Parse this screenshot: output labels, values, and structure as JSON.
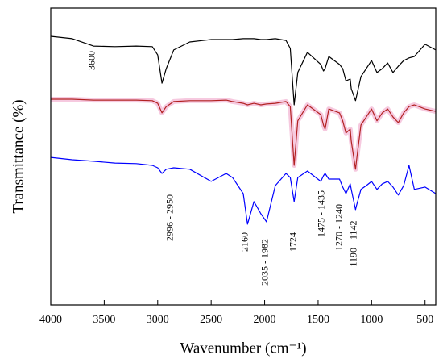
{
  "chart_data": {
    "type": "line",
    "x_label": "Wavenumber (cm⁻¹)",
    "y_label": "Transmittance (%)",
    "xlim": [
      4000,
      400
    ],
    "ylim": [
      0,
      100
    ],
    "xticks": [
      4000,
      3500,
      3000,
      2500,
      2000,
      1500,
      1000,
      500
    ],
    "x": [
      4000,
      3800,
      3600,
      3400,
      3200,
      3050,
      3000,
      2960,
      2920,
      2850,
      2700,
      2500,
      2360,
      2300,
      2200,
      2160,
      2100,
      2035,
      1982,
      1900,
      1800,
      1760,
      1724,
      1690,
      1600,
      1475,
      1450,
      1435,
      1400,
      1300,
      1270,
      1240,
      1200,
      1190,
      1150,
      1142,
      1100,
      1050,
      1000,
      950,
      900,
      850,
      800,
      750,
      700,
      650,
      600,
      500,
      400
    ],
    "series": [
      {
        "color": "#000000",
        "values": [
          90.5,
          89.7,
          87.2,
          87.0,
          87.2,
          87.0,
          84.2,
          74.7,
          79.6,
          85.9,
          88.6,
          89.4,
          89.4,
          89.4,
          89.7,
          89.7,
          89.7,
          89.4,
          89.4,
          89.7,
          89.1,
          86.4,
          67.4,
          78.3,
          85.1,
          81.0,
          78.8,
          79.6,
          83.7,
          81.0,
          79.6,
          75.5,
          76.1,
          72.8,
          68.8,
          70.1,
          76.9,
          79.6,
          82.3,
          78.3,
          79.6,
          81.5,
          78.3,
          80.4,
          82.3,
          83.2,
          83.7,
          87.8,
          85.9
        ]
      },
      {
        "color": "#b22222",
        "values": [
          69.3,
          69.3,
          69.0,
          69.0,
          69.0,
          68.8,
          67.9,
          64.7,
          66.8,
          68.5,
          68.8,
          68.8,
          69.0,
          68.5,
          67.9,
          67.4,
          67.9,
          67.4,
          67.7,
          67.9,
          68.5,
          66.8,
          47.0,
          62.0,
          67.4,
          64.1,
          60.6,
          59.2,
          66.0,
          64.7,
          62.0,
          57.9,
          59.2,
          55.2,
          45.7,
          48.4,
          60.6,
          63.3,
          66.0,
          62.0,
          64.7,
          66.0,
          63.3,
          61.4,
          64.7,
          66.8,
          67.4,
          66.0,
          65.2
        ]
      },
      {
        "color": "#0000ff",
        "values": [
          49.7,
          48.9,
          48.4,
          47.8,
          47.6,
          47.0,
          46.2,
          44.3,
          45.7,
          46.2,
          45.7,
          41.6,
          44.3,
          42.9,
          37.5,
          27.2,
          34.8,
          30.7,
          28.0,
          40.2,
          44.3,
          42.9,
          34.8,
          42.9,
          45.1,
          41.6,
          43.5,
          44.3,
          42.4,
          42.4,
          39.7,
          37.5,
          40.8,
          38.9,
          32.1,
          33.4,
          38.9,
          40.2,
          41.6,
          38.9,
          40.8,
          41.6,
          39.7,
          37.0,
          40.2,
          47.0,
          38.9,
          39.7,
          37.5
        ]
      }
    ],
    "annotations": [
      {
        "text": "3600",
        "x": 3609
      },
      {
        "text": "2996 - 2950",
        "x": 2880
      },
      {
        "text": "2160",
        "x": 2180
      },
      {
        "text": "2035 - 1982",
        "x": 1991
      },
      {
        "text": "1724",
        "x": 1727
      },
      {
        "text": "1475 - 1435",
        "x": 1465
      },
      {
        "text": "1270 - 1240",
        "x": 1300
      },
      {
        "text": "1190 - 1142",
        "x": 1163
      }
    ]
  }
}
